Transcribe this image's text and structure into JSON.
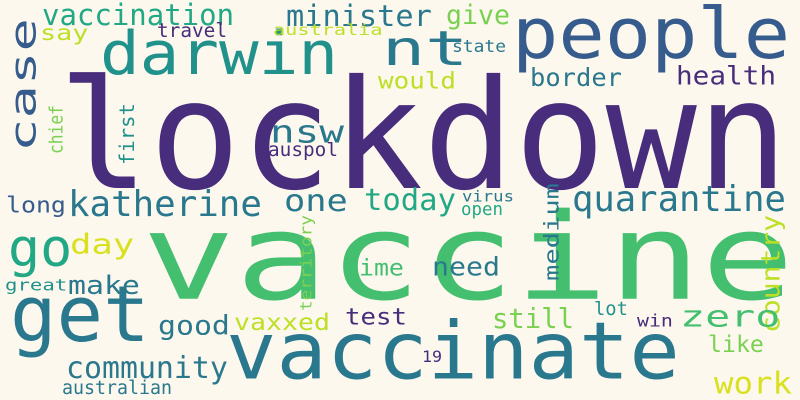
{
  "background": "#fdf8ee",
  "palette": {
    "dark_purple": "#472d7b",
    "blue": "#3b5c8b",
    "steel_blue": "#365c8d",
    "teal": "#2a788e",
    "green_teal": "#21918c",
    "sea_green": "#22a884",
    "green": "#44bf70",
    "lime": "#7ad151",
    "yellow_green": "#bddf26",
    "yellow": "#d9e11f"
  },
  "words": [
    {
      "text": "lockdown",
      "color": "#472d7b",
      "rotated": false
    },
    {
      "text": "vaccine",
      "color": "#44bf70",
      "rotated": false
    },
    {
      "text": "people",
      "color": "#365c8d",
      "rotated": false
    },
    {
      "text": "get",
      "color": "#2a788e",
      "rotated": false
    },
    {
      "text": "vaccinate",
      "color": "#2a788e",
      "rotated": false
    },
    {
      "text": "darwin",
      "color": "#21918c",
      "rotated": false
    },
    {
      "text": "nt",
      "color": "#2a788e",
      "rotated": false
    },
    {
      "text": "case",
      "color": "#365c8d",
      "rotated": true
    },
    {
      "text": "go",
      "color": "#22a884",
      "rotated": false
    },
    {
      "text": "katherine",
      "color": "#2a788e",
      "rotated": false
    },
    {
      "text": "one",
      "color": "#2a788e",
      "rotated": false
    },
    {
      "text": "quarantine",
      "color": "#2a788e",
      "rotated": false
    },
    {
      "text": "community",
      "color": "#2a788e",
      "rotated": false
    },
    {
      "text": "today",
      "color": "#22a884",
      "rotated": false
    },
    {
      "text": "vaccination",
      "color": "#22a884",
      "rotated": false
    },
    {
      "text": "minister",
      "color": "#2a788e",
      "rotated": false
    },
    {
      "text": "give",
      "color": "#7ad151",
      "rotated": false
    },
    {
      "text": "health",
      "color": "#472d7b",
      "rotated": false
    },
    {
      "text": "border",
      "color": "#2a788e",
      "rotated": false
    },
    {
      "text": "would",
      "color": "#bddf26",
      "rotated": false
    },
    {
      "text": "nsw",
      "color": "#2a788e",
      "rotated": false
    },
    {
      "text": "first",
      "color": "#21918c",
      "rotated": true
    },
    {
      "text": "chief",
      "color": "#7ad151",
      "rotated": true
    },
    {
      "text": "say",
      "color": "#bddf26",
      "rotated": false
    },
    {
      "text": "travel",
      "color": "#472d7b",
      "rotated": false
    },
    {
      "text": "australia",
      "color": "#bddf26",
      "rotated": false
    },
    {
      "text": "state",
      "color": "#2a788e",
      "rotated": false
    },
    {
      "text": "auspol",
      "color": "#472d7b",
      "rotated": false
    },
    {
      "text": "long",
      "color": "#365c8d",
      "rotated": false
    },
    {
      "text": "virus",
      "color": "#2a788e",
      "rotated": false
    },
    {
      "text": "open",
      "color": "#22a884",
      "rotated": false
    },
    {
      "text": "day",
      "color": "#d9e11f",
      "rotated": false
    },
    {
      "text": "make",
      "color": "#2a788e",
      "rotated": false
    },
    {
      "text": "great",
      "color": "#21918c",
      "rotated": false
    },
    {
      "text": "territory",
      "color": "#7ad151",
      "rotated": true
    },
    {
      "text": "time",
      "color": "#44bf70",
      "rotated": false
    },
    {
      "text": "need",
      "color": "#2a788e",
      "rotated": false
    },
    {
      "text": "medium",
      "color": "#2a788e",
      "rotated": true
    },
    {
      "text": "country",
      "color": "#bddf26",
      "rotated": true
    },
    {
      "text": "still",
      "color": "#7ad151",
      "rotated": false
    },
    {
      "text": "zero",
      "color": "#44bf70",
      "rotated": false
    },
    {
      "text": "lot",
      "color": "#21918c",
      "rotated": false
    },
    {
      "text": "win",
      "color": "#472d7b",
      "rotated": false
    },
    {
      "text": "good",
      "color": "#2a788e",
      "rotated": false
    },
    {
      "text": "vaxxed",
      "color": "#bddf26",
      "rotated": false
    },
    {
      "text": "test",
      "color": "#472d7b",
      "rotated": false
    },
    {
      "text": "like",
      "color": "#7ad151",
      "rotated": false
    },
    {
      "text": "work",
      "color": "#d9e11f",
      "rotated": false
    },
    {
      "text": "19",
      "color": "#472d7b",
      "rotated": false
    },
    {
      "text": "australian",
      "color": "#2a788e",
      "rotated": false
    }
  ]
}
